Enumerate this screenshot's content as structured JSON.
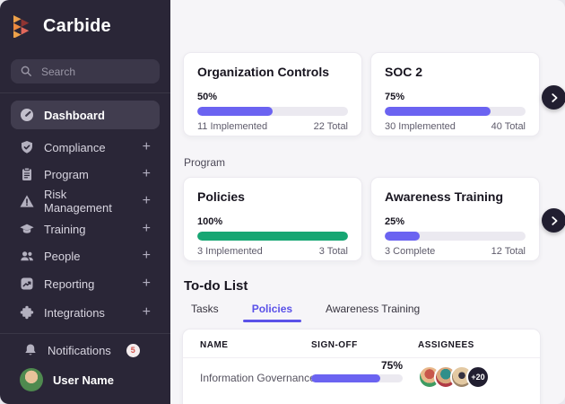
{
  "brand": {
    "name": "Carbide"
  },
  "sidebar": {
    "search": {
      "placeholder": "Search",
      "icon": "search-icon"
    },
    "plus_label": "+",
    "items": [
      {
        "label": "Dashboard",
        "icon": "gauge-icon",
        "active": true,
        "expandable": false
      },
      {
        "label": "Compliance",
        "icon": "shield-check-icon",
        "active": false,
        "expandable": true
      },
      {
        "label": "Program",
        "icon": "clipboard-icon",
        "active": false,
        "expandable": true
      },
      {
        "label": "Risk Management",
        "icon": "warning-icon",
        "active": false,
        "expandable": true
      },
      {
        "label": "Training",
        "icon": "graduation-cap-icon",
        "active": false,
        "expandable": true
      },
      {
        "label": "People",
        "icon": "people-icon",
        "active": false,
        "expandable": true
      },
      {
        "label": "Reporting",
        "icon": "chart-icon",
        "active": false,
        "expandable": true
      },
      {
        "label": "Integrations",
        "icon": "puzzle-icon",
        "active": false,
        "expandable": true
      }
    ],
    "notifications": {
      "label": "Notifications",
      "badge": "5",
      "icon": "bell-icon"
    },
    "user": {
      "name": "User Name"
    }
  },
  "main": {
    "section_label": "Program",
    "cards": [
      {
        "title": "Organization Controls",
        "percent_label": "50%",
        "percent": 50,
        "left_stat": "11 Implemented",
        "right_stat": "22 Total",
        "bar_color": "#6b63f1"
      },
      {
        "title": "SOC 2",
        "percent_label": "75%",
        "percent": 75,
        "left_stat": "30 Implemented",
        "right_stat": "40 Total",
        "bar_color": "#6b63f1"
      },
      {
        "title": "Policies",
        "percent_label": "100%",
        "percent": 100,
        "left_stat": "3 Implemented",
        "right_stat": "3 Total",
        "bar_color": "#17a673"
      },
      {
        "title": "Awareness Training",
        "percent_label": "25%",
        "percent": 25,
        "left_stat": "3 Complete",
        "right_stat": "12 Total",
        "bar_color": "#6b63f1"
      }
    ],
    "todo": {
      "heading": "To-do List",
      "tabs": [
        {
          "label": "Tasks",
          "active": false
        },
        {
          "label": "Policies",
          "active": true
        },
        {
          "label": "Awareness Training",
          "active": false
        }
      ],
      "table": {
        "columns": [
          "NAME",
          "SIGN-OFF",
          "ASSIGNEES"
        ],
        "rows": [
          {
            "name": "Information Governance",
            "signoff_label": "75%",
            "signoff_percent": 75,
            "signoff_color": "#6b63f1",
            "extra_assignees": "+20"
          }
        ]
      }
    }
  },
  "colors": {
    "sidebar_bg": "#2a2637",
    "accent_purple": "#6b63f1",
    "accent_green": "#17a673",
    "tab_active": "#5a51e8",
    "badge_red": "#d5554e",
    "dark_button": "#211e30"
  }
}
